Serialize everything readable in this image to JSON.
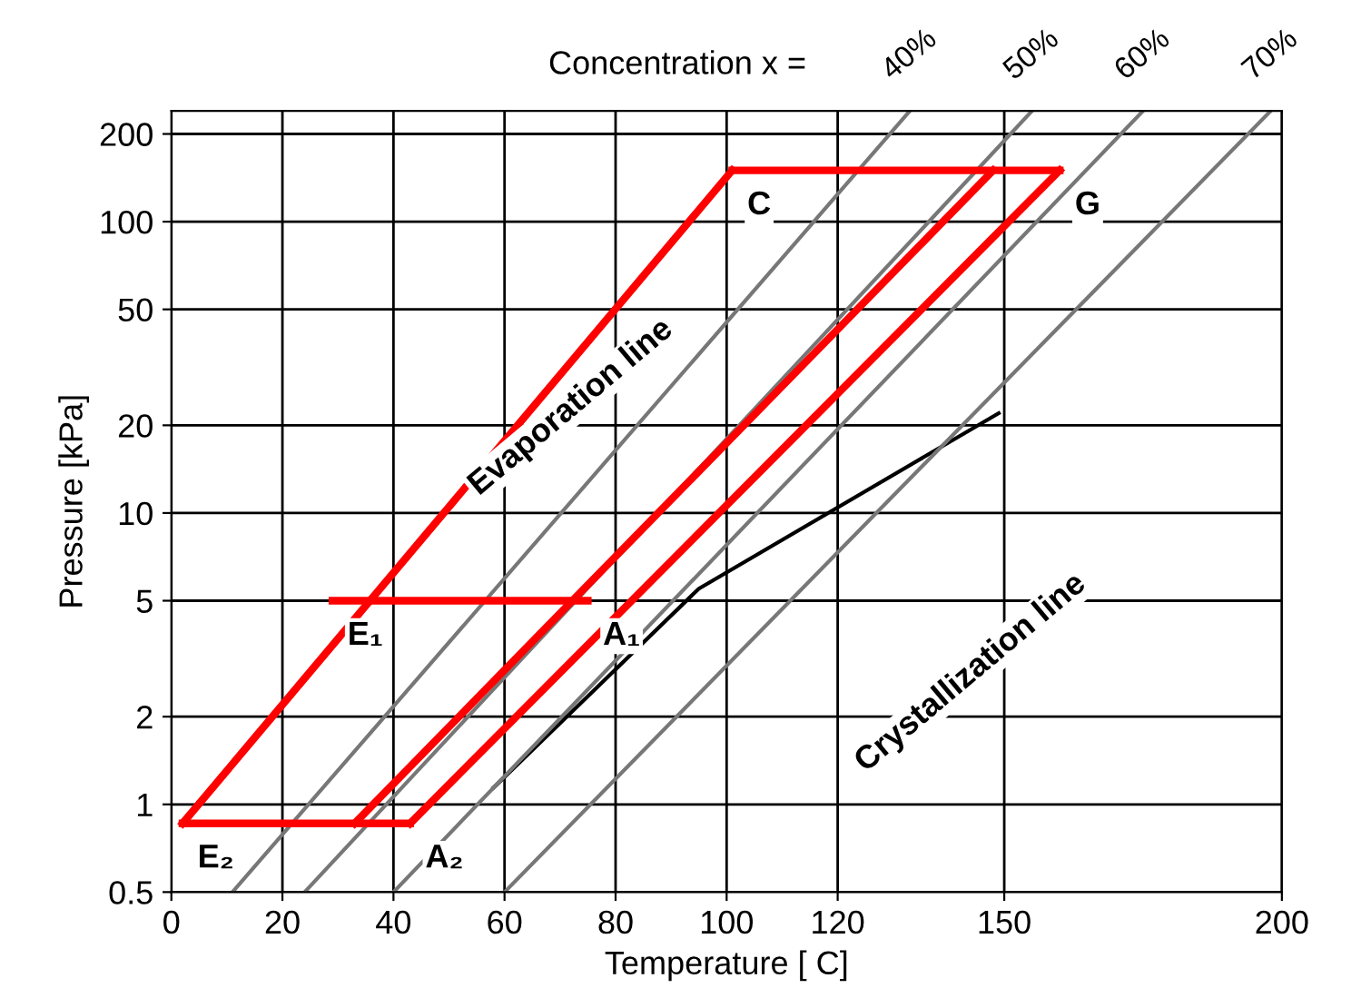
{
  "chart_data": {
    "type": "line",
    "xlabel": "Temperature [ C]",
    "ylabel": "Pressure [kPa]",
    "log": "y",
    "grid": true,
    "marker": "none",
    "line_style": "solid",
    "xlim": [
      0,
      200
    ],
    "xticks": [
      0,
      20,
      40,
      60,
      80,
      100,
      120,
      150,
      200
    ],
    "ylim": [
      0.5,
      240
    ],
    "yticks": [
      0.5,
      1,
      2,
      5,
      10,
      20,
      50,
      100,
      200
    ],
    "series": [
      {
        "color": "#ff0000",
        "x": [
          2,
          101
        ],
        "values": [
          0.86,
          150
        ]
      },
      {
        "color": "#ff0000",
        "x": [
          101,
          160
        ],
        "values": [
          150,
          150
        ]
      },
      {
        "color": "#ff0000",
        "x": [
          43,
          160
        ],
        "values": [
          0.86,
          150
        ]
      },
      {
        "color": "#ff0000",
        "x": [
          2,
          43
        ],
        "values": [
          0.86,
          0.86
        ]
      },
      {
        "color": "#ff0000",
        "x": [
          33,
          148
        ],
        "values": [
          0.86,
          150
        ]
      },
      {
        "color": "#ff0000",
        "x": [
          29,
          75
        ],
        "values": [
          5,
          5
        ]
      },
      {
        "color": "#000000",
        "x": [
          58,
          95,
          149
        ],
        "values": [
          1.14,
          5.5,
          22
        ]
      },
      {
        "color": "#777777",
        "x": [
          11,
          133
        ],
        "values": [
          0.5,
          240
        ]
      },
      {
        "color": "#777777",
        "x": [
          24,
          155
        ],
        "values": [
          0.5,
          240
        ]
      },
      {
        "color": "#777777",
        "x": [
          40,
          175
        ],
        "values": [
          0.5,
          240
        ]
      },
      {
        "color": "#777777",
        "x": [
          60,
          198
        ],
        "values": [
          0.5,
          240
        ]
      }
    ],
    "annotations": [
      "Concentration x =",
      {
        "text": "C",
        "x": 101,
        "y": 150
      },
      {
        "text": "G",
        "x": 160,
        "y": 150
      },
      {
        "text": "E₁",
        "x": 29,
        "y": 5
      },
      {
        "text": "A₁",
        "x": 75,
        "y": 5
      },
      {
        "text": "E₂",
        "x": 2,
        "y": 0.86
      },
      {
        "text": "A₂",
        "x": 43,
        "y": 0.86
      },
      "Evaporation line",
      "Crystallization line",
      {
        "text": "40%",
        "x": 133,
        "y": 240
      },
      {
        "text": "50%",
        "x": 155,
        "y": 240
      },
      {
        "text": "60%",
        "x": 175,
        "y": 240
      },
      {
        "text": "70%",
        "x": 198,
        "y": 240
      }
    ]
  }
}
